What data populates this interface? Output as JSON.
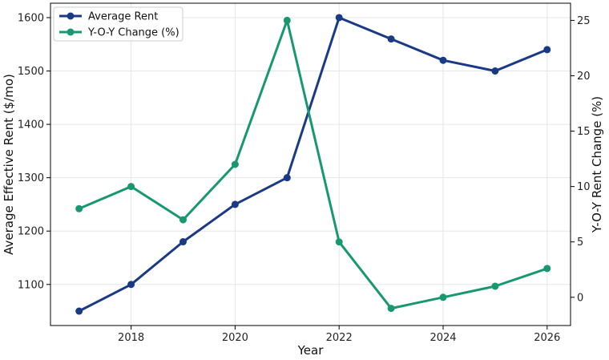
{
  "chart_data": {
    "type": "line",
    "x": [
      2017,
      2018,
      2019,
      2020,
      2021,
      2022,
      2023,
      2024,
      2025,
      2026
    ],
    "xlabel": "Year",
    "xticks": [
      2018,
      2020,
      2022,
      2024,
      2026
    ],
    "xlim": [
      2016.45,
      2026.45
    ],
    "ylabel_left": "Average Effective Rent ($/mo)",
    "ylabel_right": "Y-O-Y Rent Change (%)",
    "ylim_left": [
      1023,
      1627
    ],
    "yticks_left": [
      1100,
      1200,
      1300,
      1400,
      1500,
      1600
    ],
    "ylim_right": [
      -2.55,
      26.55
    ],
    "yticks_right": [
      0,
      5,
      10,
      15,
      20,
      25
    ],
    "grid": true,
    "legend_position": "top-left",
    "series": [
      {
        "name": "Average Rent",
        "axis": "left",
        "color": "#1a3a86",
        "values": [
          1050,
          1100,
          1180,
          1250,
          1300,
          1600,
          1560,
          1520,
          1500,
          1540
        ]
      },
      {
        "name": "Y-O-Y Change (%)",
        "axis": "right",
        "color": "#179870",
        "values": [
          8,
          10,
          7,
          12,
          25,
          5,
          -1,
          0,
          1,
          2.6
        ]
      }
    ]
  }
}
